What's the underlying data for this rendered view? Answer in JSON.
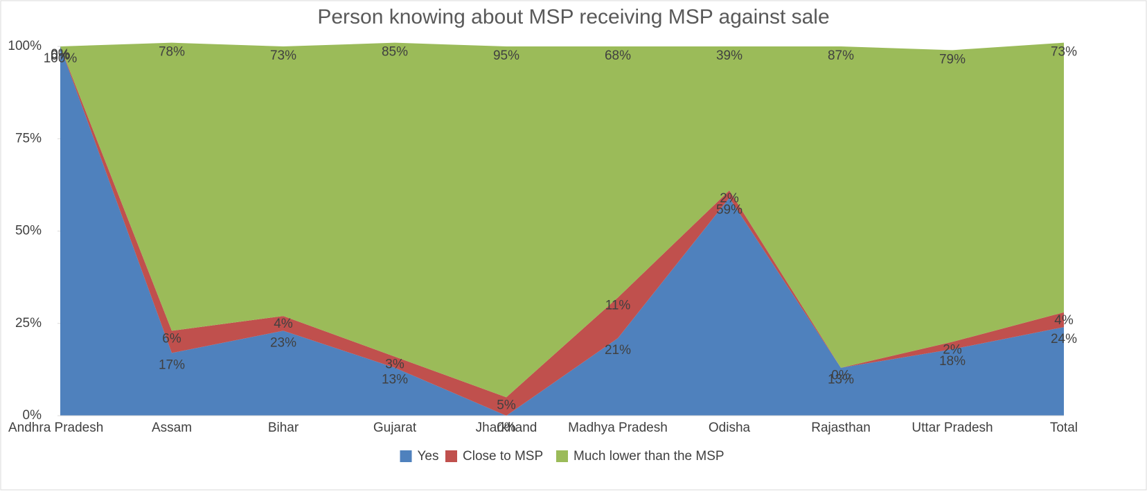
{
  "chart_data": {
    "type": "stacked_area",
    "title": "Person knowing about MSP receiving MSP against sale",
    "categories": [
      "Andhra Pradesh",
      "Assam",
      "Bihar",
      "Gujarat",
      "Jharkhand",
      "Madhya Pradesh",
      "Odisha",
      "Rajasthan",
      "Uttar Pradesh",
      "Total"
    ],
    "series": [
      {
        "name": "Yes",
        "color": "#4f81bd",
        "values": [
          100,
          17,
          23,
          13,
          0,
          21,
          59,
          13,
          18,
          24
        ],
        "value_labels": [
          "100%",
          "17%",
          "23%",
          "13%",
          "0%",
          "21%",
          "59%",
          "13%",
          "18%",
          "24%"
        ]
      },
      {
        "name": "Close to MSP",
        "color": "#c0504d",
        "values": [
          0,
          6,
          4,
          3,
          5,
          11,
          2,
          0,
          2,
          4
        ],
        "value_labels": [
          "0%",
          "6%",
          "4%",
          "3%",
          "5%",
          "11%",
          "2%",
          "0%",
          "2%",
          "4%"
        ]
      },
      {
        "name": "Much lower than the MSP",
        "color": "#9bbb59",
        "values": [
          0,
          78,
          73,
          85,
          95,
          68,
          39,
          87,
          79,
          73
        ],
        "value_labels": [
          "0%",
          "78%",
          "73%",
          "85%",
          "95%",
          "68%",
          "39%",
          "87%",
          "79%",
          "73%"
        ]
      }
    ],
    "ylim": [
      0,
      100
    ],
    "yticks": [
      {
        "value": 0,
        "label": "0%"
      },
      {
        "value": 25,
        "label": "25%"
      },
      {
        "value": 50,
        "label": "50%"
      },
      {
        "value": 75,
        "label": "75%"
      },
      {
        "value": 100,
        "label": "100%"
      }
    ],
    "legend": "bottom"
  }
}
